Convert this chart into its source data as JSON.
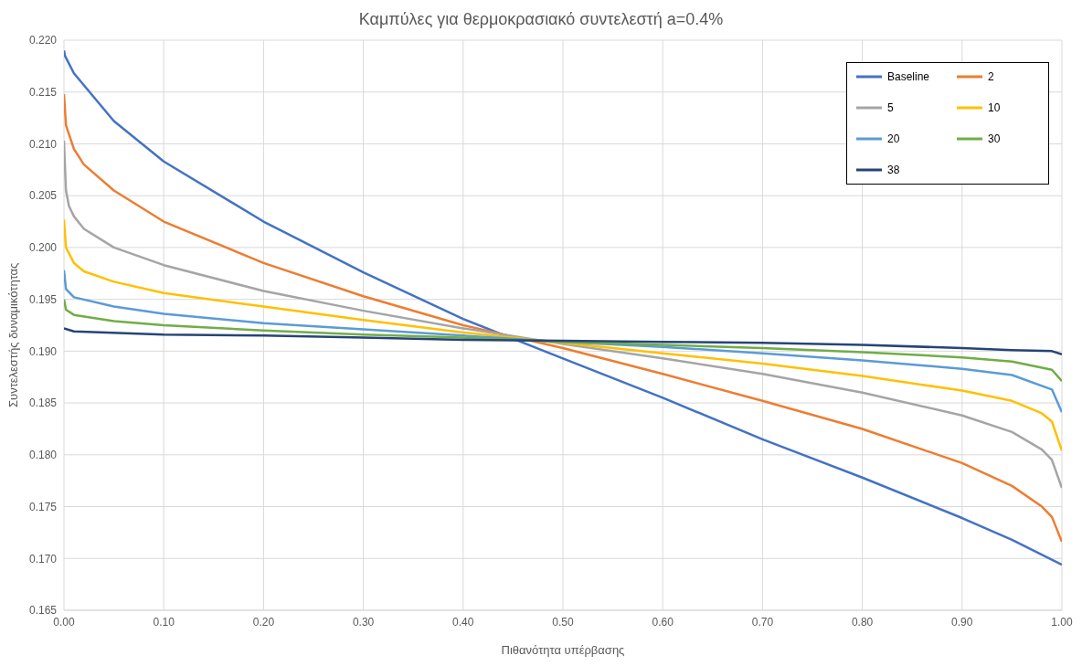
{
  "chart_data": {
    "type": "line",
    "title": "Καμπύλες για θερμοκρασιακό συντελεστή a=0.4%",
    "xlabel": "Πιθανότητα υπέρβασης",
    "ylabel": "Συντελεστής δυναμικότητας",
    "xlim": [
      0,
      1
    ],
    "ylim": [
      0.165,
      0.22
    ],
    "xticks": [
      {
        "value": 0,
        "label": "0.00"
      },
      {
        "value": 0.1,
        "label": "0.10"
      },
      {
        "value": 0.2,
        "label": "0.20"
      },
      {
        "value": 0.3,
        "label": "0.30"
      },
      {
        "value": 0.4,
        "label": "0.40"
      },
      {
        "value": 0.5,
        "label": "0.50"
      },
      {
        "value": 0.6,
        "label": "0.60"
      },
      {
        "value": 0.7,
        "label": "0.70"
      },
      {
        "value": 0.8,
        "label": "0.80"
      },
      {
        "value": 0.9,
        "label": "0.90"
      },
      {
        "value": 1,
        "label": "1.00"
      }
    ],
    "yticks": [
      {
        "value": 0.165,
        "label": "0.165"
      },
      {
        "value": 0.17,
        "label": "0.170"
      },
      0.175,
      {
        "value": 0.18,
        "label": "0.180"
      },
      0.185,
      {
        "value": 0.19,
        "label": "0.190"
      },
      0.195,
      {
        "value": 0.2,
        "label": "0.200"
      },
      0.205,
      {
        "value": 0.21,
        "label": "0.210"
      },
      0.215,
      {
        "value": 0.22,
        "label": "0.220"
      }
    ],
    "grid": true,
    "legend": "top right",
    "marker": "none",
    "line_style": "solid",
    "series": [
      {
        "name": "Baseline",
        "color": "#4472c4",
        "x": [
          0,
          0.001,
          0.01,
          0.05,
          0.1,
          0.2,
          0.3,
          0.4,
          0.5,
          0.6,
          0.7,
          0.8,
          0.9,
          0.95,
          1
        ],
        "values": [
          0.219,
          0.2185,
          0.2168,
          0.2122,
          0.2083,
          0.2025,
          0.1976,
          0.1931,
          0.1893,
          0.1855,
          0.1815,
          0.1778,
          0.1739,
          0.1718,
          0.1694
        ]
      },
      {
        "name": "2",
        "color": "#ed7d31",
        "x": [
          0,
          0.002,
          0.01,
          0.02,
          0.05,
          0.1,
          0.2,
          0.3,
          0.4,
          0.5,
          0.6,
          0.7,
          0.8,
          0.9,
          0.95,
          0.98,
          0.99,
          1
        ],
        "values": [
          0.2148,
          0.2118,
          0.2095,
          0.208,
          0.2055,
          0.2025,
          0.1985,
          0.1953,
          0.1925,
          0.1903,
          0.1878,
          0.1852,
          0.1825,
          0.1792,
          0.177,
          0.175,
          0.174,
          0.1716
        ]
      },
      {
        "name": "5",
        "color": "#a5a5a5",
        "x": [
          0,
          0.002,
          0.005,
          0.01,
          0.02,
          0.05,
          0.1,
          0.2,
          0.3,
          0.4,
          0.5,
          0.6,
          0.7,
          0.8,
          0.9,
          0.95,
          0.98,
          0.99,
          1
        ],
        "values": [
          0.2103,
          0.2055,
          0.204,
          0.203,
          0.2018,
          0.2,
          0.1983,
          0.1958,
          0.1939,
          0.1922,
          0.1907,
          0.1893,
          0.1878,
          0.186,
          0.1838,
          0.1822,
          0.1805,
          0.1795,
          0.1768
        ]
      },
      {
        "name": "10",
        "color": "#ffc000",
        "x": [
          0,
          0.002,
          0.01,
          0.02,
          0.05,
          0.1,
          0.2,
          0.3,
          0.4,
          0.5,
          0.6,
          0.7,
          0.8,
          0.9,
          0.95,
          0.98,
          0.99,
          1
        ],
        "values": [
          0.2027,
          0.2,
          0.1985,
          0.1977,
          0.1967,
          0.1956,
          0.1943,
          0.193,
          0.1918,
          0.1908,
          0.1898,
          0.1888,
          0.1876,
          0.1862,
          0.1852,
          0.184,
          0.1832,
          0.1804
        ]
      },
      {
        "name": "20",
        "color": "#5b9bd5",
        "x": [
          0,
          0.002,
          0.01,
          0.05,
          0.1,
          0.2,
          0.3,
          0.4,
          0.5,
          0.6,
          0.7,
          0.8,
          0.9,
          0.95,
          0.99,
          1
        ],
        "values": [
          0.1978,
          0.196,
          0.1952,
          0.1943,
          0.1936,
          0.1927,
          0.1921,
          0.1915,
          0.1909,
          0.1904,
          0.1898,
          0.1891,
          0.1883,
          0.1877,
          0.1863,
          0.1841
        ]
      },
      {
        "name": "30",
        "color": "#70ad47",
        "x": [
          0,
          0.002,
          0.01,
          0.05,
          0.1,
          0.2,
          0.3,
          0.4,
          0.5,
          0.6,
          0.7,
          0.8,
          0.9,
          0.95,
          0.99,
          1
        ],
        "values": [
          0.195,
          0.194,
          0.1935,
          0.1929,
          0.1925,
          0.192,
          0.1916,
          0.1913,
          0.1909,
          0.1906,
          0.1903,
          0.1899,
          0.1894,
          0.189,
          0.1882,
          0.1871
        ]
      },
      {
        "name": "38",
        "color": "#264478",
        "x": [
          0,
          0.01,
          0.1,
          0.2,
          0.3,
          0.4,
          0.5,
          0.6,
          0.7,
          0.8,
          0.9,
          0.95,
          0.99,
          1
        ],
        "values": [
          0.1922,
          0.1919,
          0.1916,
          0.1915,
          0.1913,
          0.1911,
          0.191,
          0.1909,
          0.1908,
          0.1906,
          0.1903,
          0.1901,
          0.19,
          0.1897
        ]
      }
    ]
  }
}
